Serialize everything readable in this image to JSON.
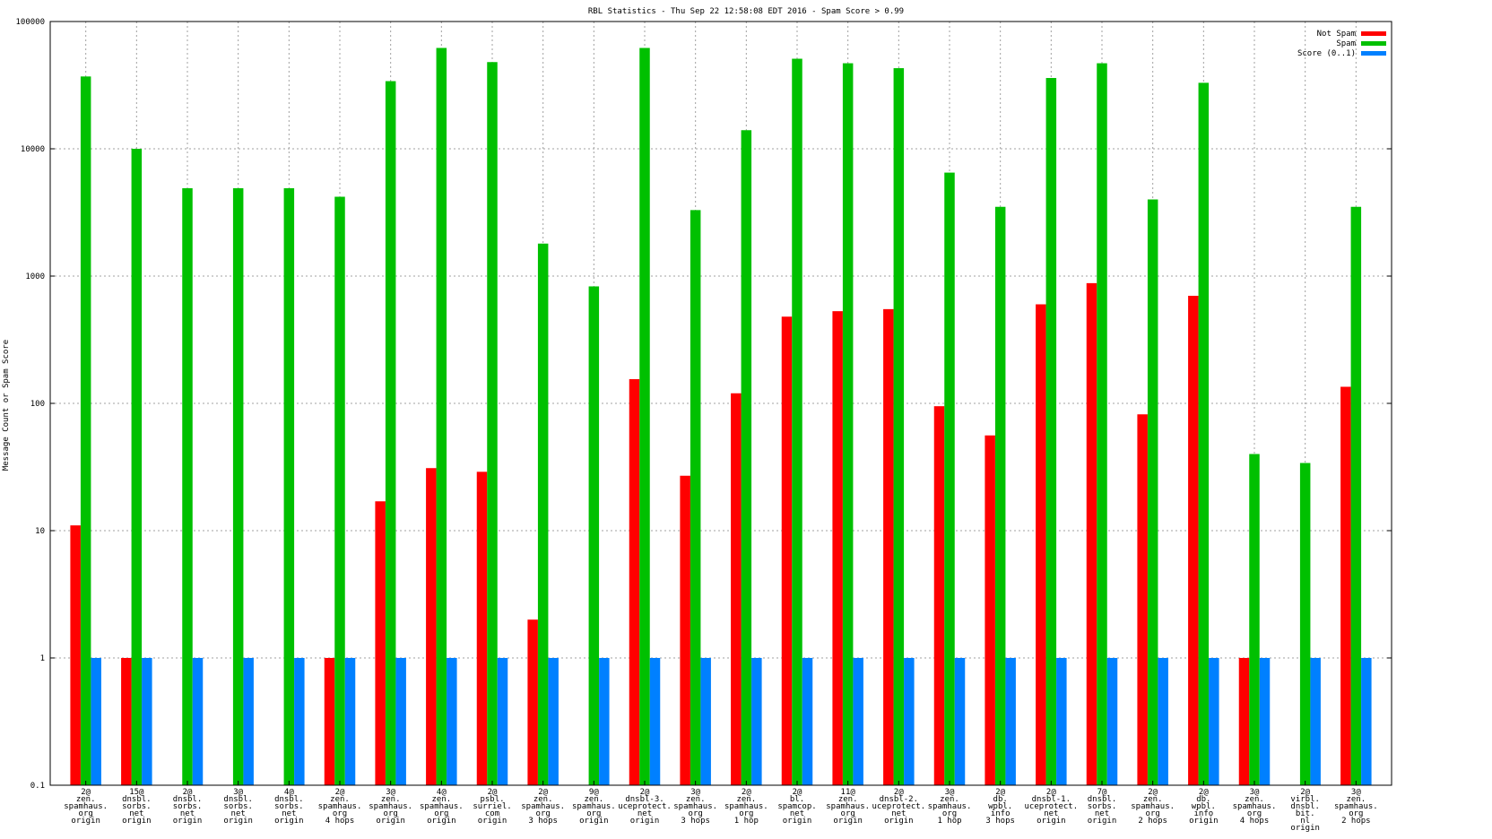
{
  "chart_data": {
    "type": "bar",
    "title": "RBL Statistics - Thu Sep 22 12:58:08 EDT 2016 - Spam Score > 0.99",
    "xlabel": "",
    "ylabel": "Message Count or Spam Score",
    "yscale": "log",
    "ylim": [
      0.1,
      100000
    ],
    "yticks": [
      "0.1",
      "1",
      "10",
      "100",
      "1000",
      "10000",
      "100000"
    ],
    "grid": true,
    "legend_position": "top-right",
    "categories": [
      [
        "2@",
        "zen.",
        "spamhaus.",
        "org",
        "origin"
      ],
      [
        "15@",
        "dnsbl.",
        "sorbs.",
        "net",
        "origin"
      ],
      [
        "2@",
        "dnsbl.",
        "sorbs.",
        "net",
        "origin"
      ],
      [
        "3@",
        "dnsbl.",
        "sorbs.",
        "net",
        "origin"
      ],
      [
        "4@",
        "dnsbl.",
        "sorbs.",
        "net",
        "origin"
      ],
      [
        "2@",
        "zen.",
        "spamhaus.",
        "org",
        "4 hops"
      ],
      [
        "3@",
        "zen.",
        "spamhaus.",
        "org",
        "origin"
      ],
      [
        "4@",
        "zen.",
        "spamhaus.",
        "org",
        "origin"
      ],
      [
        "2@",
        "psbl.",
        "surriel.",
        "com",
        "origin"
      ],
      [
        "2@",
        "zen.",
        "spamhaus.",
        "org",
        "3 hops"
      ],
      [
        "9@",
        "zen.",
        "spamhaus.",
        "org",
        "origin"
      ],
      [
        "2@",
        "dnsbl-3.",
        "uceprotect.",
        "net",
        "origin"
      ],
      [
        "3@",
        "zen.",
        "spamhaus.",
        "org",
        "3 hops"
      ],
      [
        "2@",
        "zen.",
        "spamhaus.",
        "org",
        "1 hop"
      ],
      [
        "2@",
        "bl.",
        "spamcop.",
        "net",
        "origin"
      ],
      [
        "11@",
        "zen.",
        "spamhaus.",
        "org",
        "origin"
      ],
      [
        "2@",
        "dnsbl-2.",
        "uceprotect.",
        "net",
        "origin"
      ],
      [
        "3@",
        "zen.",
        "spamhaus.",
        "org",
        "1 hop"
      ],
      [
        "2@",
        "db.",
        "wpbl.",
        "info",
        "3 hops"
      ],
      [
        "2@",
        "dnsbl-1.",
        "uceprotect.",
        "net",
        "origin"
      ],
      [
        "7@",
        "dnsbl.",
        "sorbs.",
        "net",
        "origin"
      ],
      [
        "2@",
        "zen.",
        "spamhaus.",
        "org",
        "2 hops"
      ],
      [
        "2@",
        "db.",
        "wpbl.",
        "info",
        "origin"
      ],
      [
        "3@",
        "zen.",
        "spamhaus.",
        "org",
        "4 hops"
      ],
      [
        "2@",
        "virbl.",
        "dnsbl.",
        "bit.",
        "nl",
        "origin"
      ],
      [
        "3@",
        "zen.",
        "spamhaus.",
        "org",
        "2 hops"
      ]
    ],
    "series": [
      {
        "name": "Not Spam",
        "color": "#ff0000",
        "values": [
          11,
          1,
          null,
          null,
          null,
          1,
          17,
          31,
          29,
          2,
          null,
          155,
          27,
          120,
          480,
          530,
          550,
          95,
          56,
          600,
          880,
          82,
          700,
          1,
          null,
          135
        ]
      },
      {
        "name": "Spam",
        "color": "#00c000",
        "values": [
          37000,
          10000,
          4900,
          4900,
          4900,
          4200,
          34000,
          62000,
          48000,
          1800,
          830,
          62000,
          3300,
          14000,
          51000,
          47000,
          43000,
          6500,
          3500,
          36000,
          47000,
          4000,
          33000,
          40,
          34,
          3500
        ]
      },
      {
        "name": "Score (0..1)",
        "color": "#0080ff",
        "values": [
          1,
          1,
          1,
          1,
          1,
          1,
          1,
          1,
          1,
          1,
          1,
          1,
          1,
          1,
          1,
          1,
          1,
          1,
          1,
          1,
          1,
          1,
          1,
          1,
          1,
          1
        ]
      }
    ]
  }
}
